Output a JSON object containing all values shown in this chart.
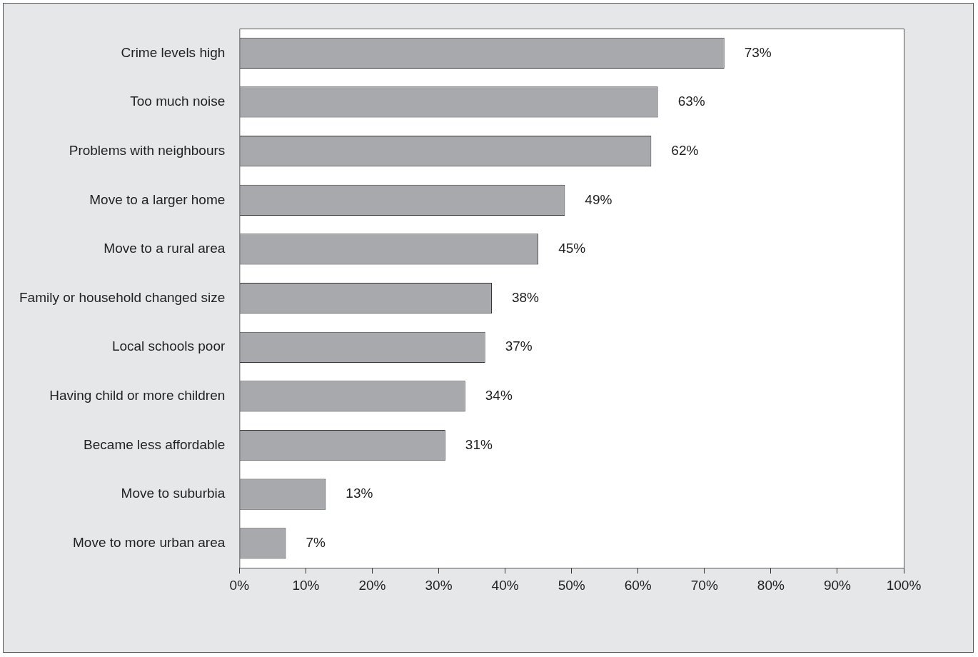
{
  "chart_data": {
    "type": "bar",
    "orientation": "horizontal",
    "categories": [
      "Crime levels high",
      "Too much noise",
      "Problems with neighbours",
      "Move to a larger home",
      "Move to a rural area",
      "Family or household changed size",
      "Local schools poor",
      "Having child or more children",
      "Became less affordable",
      "Move to suburbia",
      "Move to more urban area"
    ],
    "values": [
      73,
      63,
      62,
      49,
      45,
      38,
      37,
      34,
      31,
      13,
      7
    ],
    "value_labels": [
      "73%",
      "63%",
      "62%",
      "49%",
      "45%",
      "38%",
      "37%",
      "34%",
      "31%",
      "13%",
      "7%"
    ],
    "color": "#a7a9ac",
    "xlim": [
      0,
      100
    ],
    "xticks": [
      {
        "value": 0,
        "label": "0%"
      },
      {
        "value": 10,
        "label": "10%"
      },
      {
        "value": 20,
        "label": "20%"
      },
      {
        "value": 30,
        "label": "30%"
      },
      {
        "value": 40,
        "label": "40%"
      },
      {
        "value": 50,
        "label": "50%"
      },
      {
        "value": 60,
        "label": "60%"
      },
      {
        "value": 70,
        "label": "70%"
      },
      {
        "value": 80,
        "label": "80%"
      },
      {
        "value": 90,
        "label": "90%"
      },
      {
        "value": 100,
        "label": "100%"
      }
    ],
    "grid": false,
    "legend": false
  }
}
